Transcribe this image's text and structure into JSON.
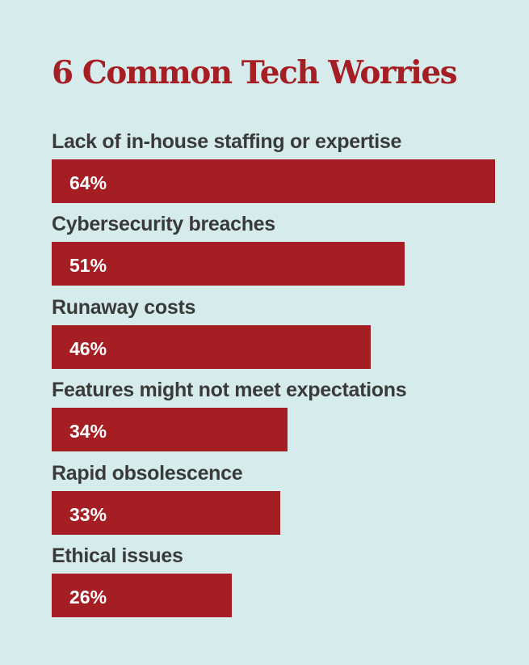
{
  "chart_data": {
    "type": "bar",
    "orientation": "horizontal",
    "title": "6 Common Tech Worries",
    "categories": [
      "Lack of in-house staffing or expertise",
      "Cybersecurity breaches",
      "Runaway costs",
      "Features might not meet expectations",
      "Rapid obsolescence",
      "Ethical issues"
    ],
    "values": [
      64,
      51,
      46,
      34,
      33,
      26
    ],
    "value_labels": [
      "64%",
      "51%",
      "46%",
      "34%",
      "33%",
      "26%"
    ],
    "unit": "%",
    "xlim": [
      0,
      64
    ],
    "grid": false,
    "legend": "none",
    "colors": {
      "background": "#d6ecec",
      "bar": "#a51e24",
      "title": "#a51e24",
      "label": "#3a3a3a",
      "value_label": "#ffffff"
    }
  }
}
